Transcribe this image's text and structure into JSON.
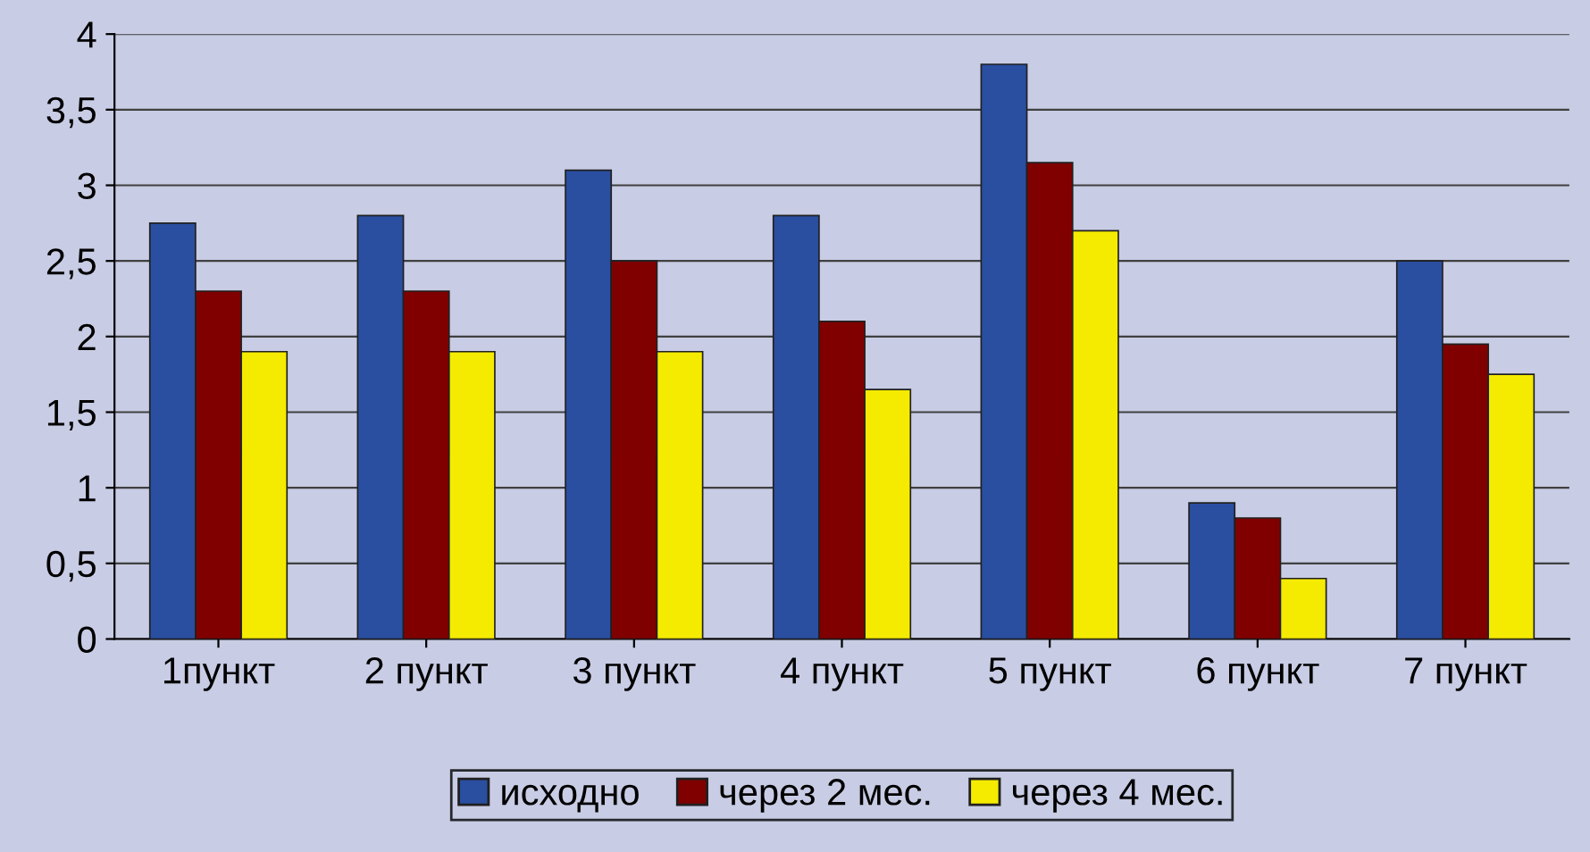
{
  "chart_data": {
    "type": "bar",
    "categories": [
      "1пункт",
      "2 пункт",
      "3 пункт",
      "4 пункт",
      "5 пункт",
      "6 пункт",
      "7 пункт"
    ],
    "series": [
      {
        "name": "исходно",
        "color": "#2a4ea0",
        "values": [
          2.75,
          2.8,
          3.1,
          2.8,
          3.8,
          0.9,
          2.5
        ]
      },
      {
        "name": "через 2 мес.",
        "color": "#800000",
        "values": [
          2.3,
          2.3,
          2.5,
          2.1,
          3.15,
          0.8,
          1.95
        ]
      },
      {
        "name": "через 4 мес.",
        "color": "#f5eb00",
        "values": [
          1.9,
          1.9,
          1.9,
          1.65,
          2.7,
          0.4,
          1.75
        ]
      }
    ],
    "ylim": [
      0,
      4
    ],
    "yticks": [
      0,
      {
        "value": 0.5,
        "label": "0,5"
      },
      1,
      {
        "value": 1.5,
        "label": "1,5"
      },
      2,
      {
        "value": 2.5,
        "label": "2,5"
      },
      3,
      {
        "value": 3.5,
        "label": "3,5"
      },
      4
    ],
    "grid": "y",
    "legend": "bottom"
  }
}
